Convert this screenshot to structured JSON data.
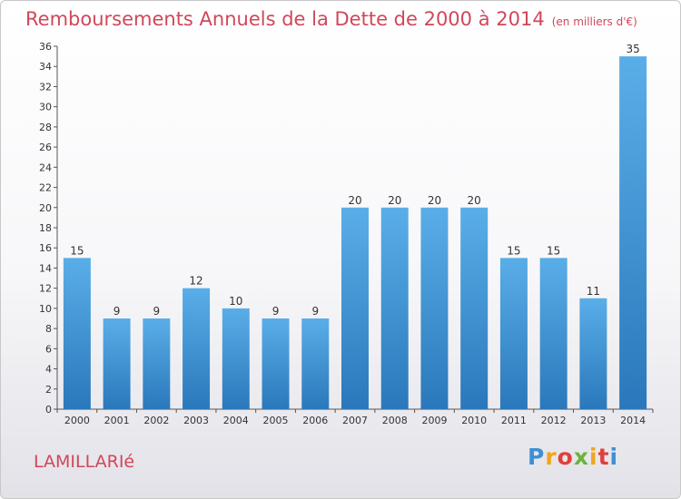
{
  "header": {
    "title": "Remboursements Annuels de la Dette de 2000 à 2014",
    "unit": "(en milliers d'€)"
  },
  "footer": {
    "commune": "LAMILLARIé",
    "logo_letters": [
      "P",
      "r",
      "o",
      "x",
      "i",
      "t",
      "i"
    ],
    "logo_colors": [
      "#3e8fd4",
      "#f2a51a",
      "#e23f3a",
      "#69b33b",
      "#f2a51a",
      "#e23f3a",
      "#3e8fd4"
    ]
  },
  "chart_data": {
    "type": "bar",
    "categories": [
      "2000",
      "2001",
      "2002",
      "2003",
      "2004",
      "2005",
      "2006",
      "2007",
      "2008",
      "2009",
      "2010",
      "2011",
      "2012",
      "2013",
      "2014"
    ],
    "values": [
      15,
      9,
      9,
      12,
      10,
      9,
      9,
      20,
      20,
      20,
      20,
      15,
      15,
      11,
      35
    ],
    "data_labels": [
      "15",
      "9",
      "9",
      "12",
      "10",
      "9",
      "9",
      "20",
      "20",
      "20",
      "20",
      "15",
      "15",
      "11",
      "35"
    ],
    "ylim": [
      0,
      36
    ],
    "yticks": [
      0,
      2,
      4,
      6,
      8,
      10,
      12,
      14,
      16,
      18,
      20,
      22,
      24,
      26,
      28,
      30,
      32,
      34,
      36
    ],
    "grid": false,
    "bar_color_top": "#5aaee8",
    "bar_color_bottom": "#2a78bb"
  }
}
